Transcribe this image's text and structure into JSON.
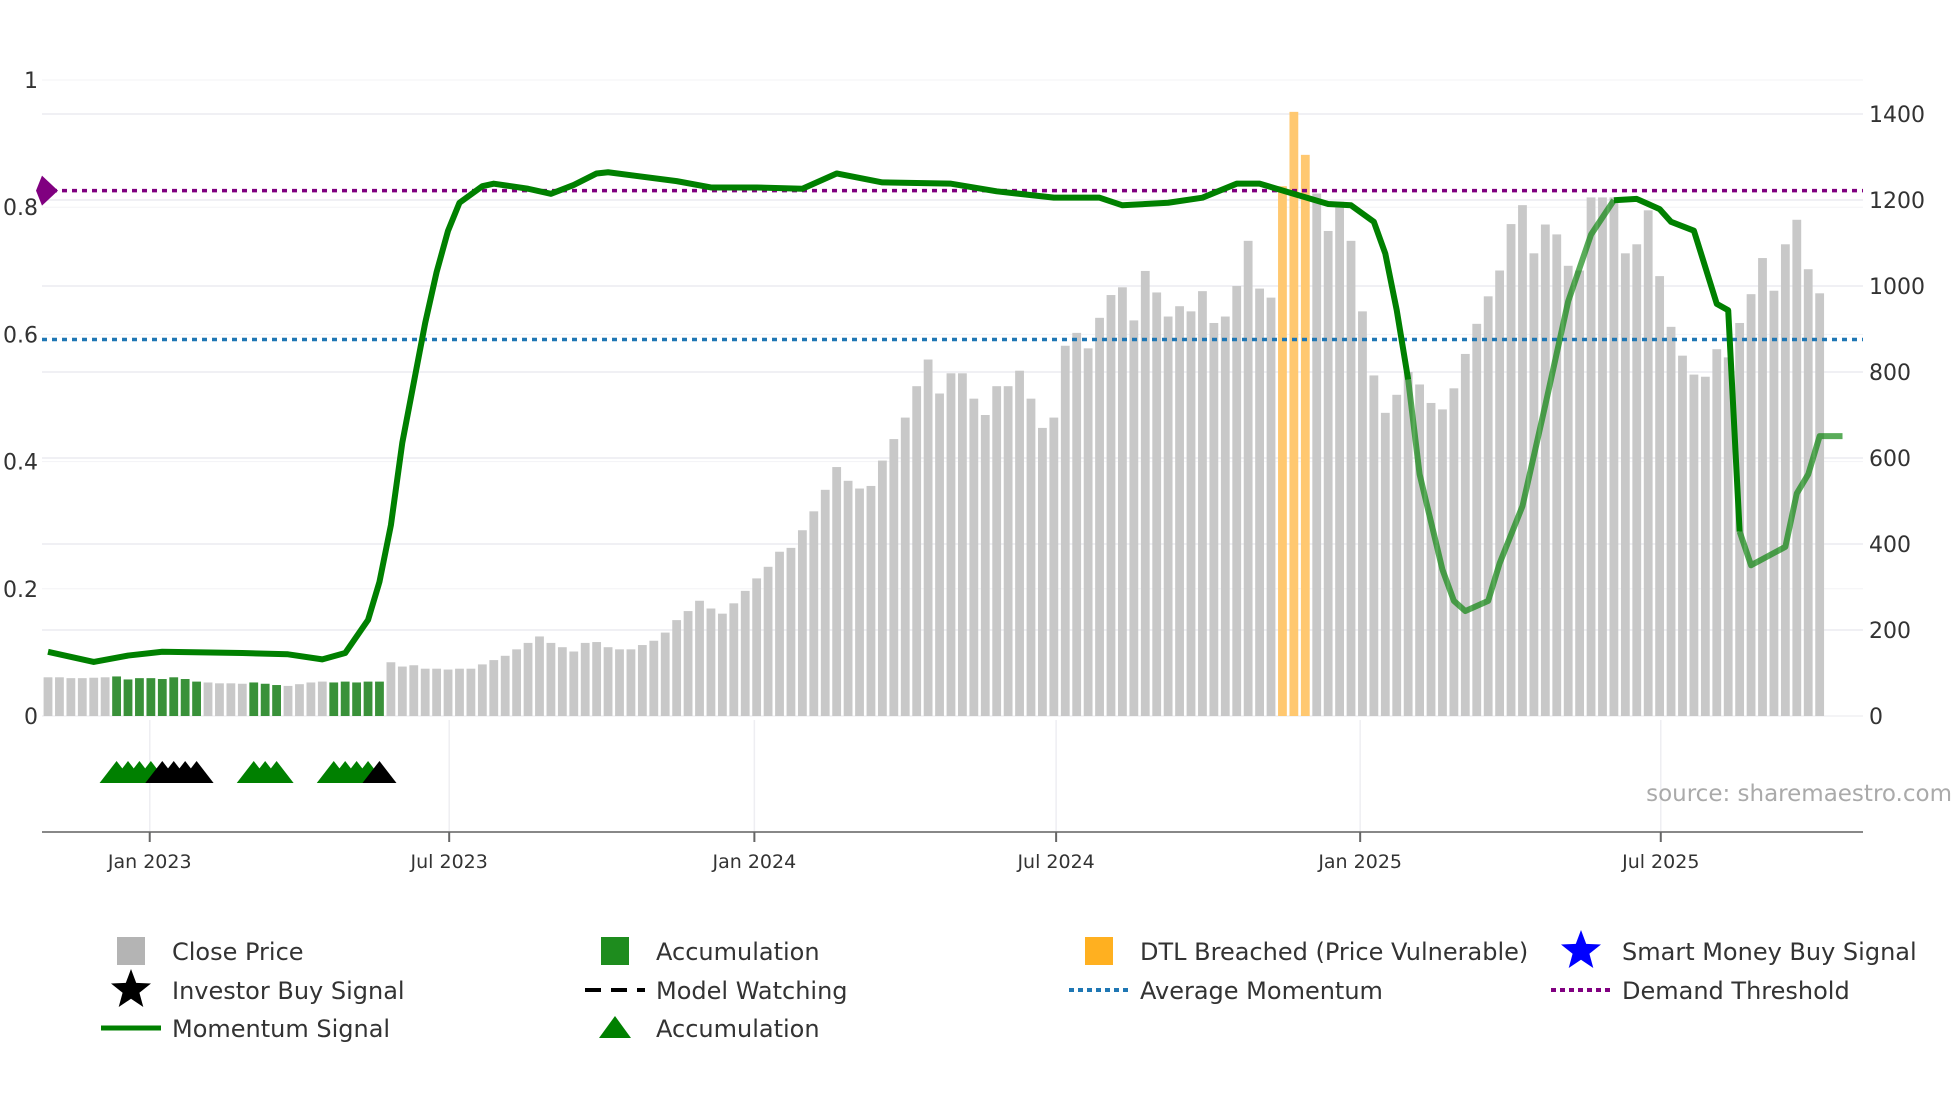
{
  "chart_data": {
    "type": "bar",
    "title": "",
    "source": "source: sharemaestro.com",
    "left_axis": {
      "ticks": [
        {
          "v": 0,
          "label": "0"
        },
        {
          "v": 0.2,
          "label": "0.2"
        },
        {
          "v": 0.4,
          "label": "0.4"
        },
        {
          "v": 0.6,
          "label": "0.6"
        },
        {
          "v": 0.8,
          "label": "0.8"
        },
        {
          "v": 1,
          "label": "1"
        }
      ],
      "range": [
        0,
        1
      ]
    },
    "right_axis": {
      "ticks": [
        {
          "v": 0,
          "label": "0"
        },
        {
          "v": 200,
          "label": "200"
        },
        {
          "v": 400,
          "label": "400"
        },
        {
          "v": 600,
          "label": "600"
        },
        {
          "v": 800,
          "label": "800"
        },
        {
          "v": 1000,
          "label": "1000"
        },
        {
          "v": 1200,
          "label": "1200"
        },
        {
          "v": 1400,
          "label": "1400"
        }
      ],
      "range": [
        0,
        1400
      ]
    },
    "x_ticks": [
      {
        "label": "Jan 2023",
        "week_index": 8.9
      },
      {
        "label": "Jul 2023",
        "week_index": 35.1
      },
      {
        "label": "Jan 2024",
        "week_index": 61.8
      },
      {
        "label": "Jul 2024",
        "week_index": 88.2
      },
      {
        "label": "Jan 2025",
        "week_index": 114.8
      },
      {
        "label": "Jul 2025",
        "week_index": 141.1
      }
    ],
    "close_price": [
      90,
      90,
      88,
      88,
      89,
      90,
      92,
      85,
      88,
      88,
      86,
      90,
      86,
      80,
      78,
      76,
      76,
      75,
      78,
      75,
      72,
      70,
      74,
      78,
      80,
      78,
      80,
      78,
      80,
      80,
      125,
      115,
      118,
      110,
      110,
      108,
      110,
      110,
      120,
      130,
      140,
      155,
      170,
      185,
      170,
      160,
      150,
      170,
      172,
      160,
      155,
      155,
      165,
      175,
      194,
      223,
      244,
      268,
      250,
      238,
      262,
      291,
      320,
      347,
      382,
      391,
      432,
      476,
      526,
      579,
      547,
      529,
      535,
      594,
      644,
      694,
      767,
      829,
      750,
      797,
      797,
      738,
      700,
      767,
      767,
      803,
      738,
      670,
      694,
      861,
      891,
      855,
      926,
      979,
      997,
      920,
      1035,
      985,
      929,
      953,
      941,
      988,
      914,
      929,
      1000,
      1105,
      994,
      973,
      1232,
      1405,
      1305,
      1215,
      1128,
      1196,
      1105,
      941,
      792,
      705,
      747,
      800,
      771,
      728,
      713,
      762,
      842,
      912,
      976,
      1036,
      1144,
      1188,
      1076,
      1143,
      1120,
      1047,
      1036,
      1206,
      1206,
      1206,
      1076,
      1097,
      1176,
      1023,
      905,
      838,
      794,
      789,
      853,
      834,
      914,
      981,
      1065,
      989,
      1097,
      1154,
      1039,
      983
    ],
    "accumulation_weeks": [
      6,
      7,
      8,
      9,
      10,
      11,
      12,
      13,
      18,
      19,
      20,
      25,
      26,
      27,
      28,
      29
    ],
    "dtl_breached_weeks": [
      108,
      109,
      110
    ],
    "momentum_signal": [
      [
        0,
        0.101
      ],
      [
        4,
        0.085
      ],
      [
        7,
        0.095
      ],
      [
        10,
        0.101
      ],
      [
        17,
        0.099
      ],
      [
        21,
        0.097
      ],
      [
        24,
        0.089
      ],
      [
        26,
        0.099
      ],
      [
        28,
        0.151
      ],
      [
        29,
        0.211
      ],
      [
        30,
        0.3
      ],
      [
        31,
        0.43
      ],
      [
        33,
        0.618
      ],
      [
        34,
        0.698
      ],
      [
        35,
        0.763
      ],
      [
        36,
        0.807
      ],
      [
        38,
        0.833
      ],
      [
        39,
        0.837
      ],
      [
        42,
        0.829
      ],
      [
        44,
        0.821
      ],
      [
        46,
        0.835
      ],
      [
        48,
        0.853
      ],
      [
        49,
        0.855
      ],
      [
        55,
        0.841
      ],
      [
        58,
        0.831
      ],
      [
        62,
        0.831
      ],
      [
        66,
        0.829
      ],
      [
        69,
        0.853
      ],
      [
        73,
        0.839
      ],
      [
        79,
        0.837
      ],
      [
        83,
        0.825
      ],
      [
        88,
        0.815
      ],
      [
        92,
        0.815
      ],
      [
        94,
        0.803
      ],
      [
        98,
        0.807
      ],
      [
        101,
        0.815
      ],
      [
        104,
        0.837
      ],
      [
        106,
        0.837
      ],
      [
        109,
        0.821
      ],
      [
        112,
        0.805
      ],
      [
        114,
        0.803
      ],
      [
        116,
        0.777
      ],
      [
        117,
        0.727
      ],
      [
        118,
        0.638
      ],
      [
        119,
        0.529
      ],
      [
        120,
        0.38
      ],
      [
        122,
        0.23
      ],
      [
        123,
        0.181
      ],
      [
        124,
        0.165
      ],
      [
        126,
        0.181
      ],
      [
        127,
        0.24
      ],
      [
        129,
        0.33
      ],
      [
        131,
        0.489
      ],
      [
        133,
        0.652
      ],
      [
        135,
        0.757
      ],
      [
        137,
        0.811
      ],
      [
        139,
        0.813
      ],
      [
        141,
        0.797
      ],
      [
        142,
        0.777
      ],
      [
        144,
        0.763
      ],
      [
        146,
        0.648
      ],
      [
        147,
        0.638
      ],
      [
        148,
        0.29
      ],
      [
        149,
        0.237
      ],
      [
        152,
        0.266
      ],
      [
        153,
        0.35
      ],
      [
        154,
        0.38
      ],
      [
        155,
        0.44
      ],
      [
        157,
        0.44
      ]
    ],
    "momentum_faded_ranges": [
      [
        119,
        137
      ],
      [
        148,
        157
      ]
    ],
    "average_momentum": 0.592,
    "demand_threshold": 0.826,
    "accumulation_markers": [
      6,
      7,
      8,
      9,
      18,
      19,
      20,
      25,
      26,
      27,
      28
    ],
    "investor_buy_markers": [
      10,
      11,
      12,
      13,
      29
    ],
    "colors": {
      "close": "#c8c8c8",
      "accumulation": "#2e8b2e",
      "dtl": "#ffc870",
      "momentum": "#008000",
      "average": "#1f77b4",
      "demand": "#800080",
      "investor": "#000000",
      "smart_money": "#0000ff",
      "legend_close": "#b4b4b4",
      "legend_dtl": "#ffb020",
      "legend_acc": "#1e8c1e"
    },
    "legend": [
      {
        "label": "Close Price",
        "icon": "square",
        "color": "#b4b4b4"
      },
      {
        "label": "Accumulation",
        "icon": "square",
        "color": "#1e8c1e"
      },
      {
        "label": "DTL Breached (Price Vulnerable)",
        "icon": "square",
        "color": "#ffb020"
      },
      {
        "label": "Smart Money Buy Signal",
        "icon": "star",
        "color": "#0000ff"
      },
      {
        "label": "Investor Buy Signal",
        "icon": "star",
        "color": "#000000"
      },
      {
        "label": "Model Watching",
        "icon": "dash",
        "color": "#000000"
      },
      {
        "label": "Average Momentum",
        "icon": "dot",
        "color": "#1f77b4"
      },
      {
        "label": "Demand Threshold",
        "icon": "dot",
        "color": "#800080"
      },
      {
        "label": "Momentum Signal",
        "icon": "line",
        "color": "#008000"
      },
      {
        "label": "Accumulation",
        "icon": "triangle",
        "color": "#008000"
      }
    ],
    "legend_placement": "bottom"
  }
}
